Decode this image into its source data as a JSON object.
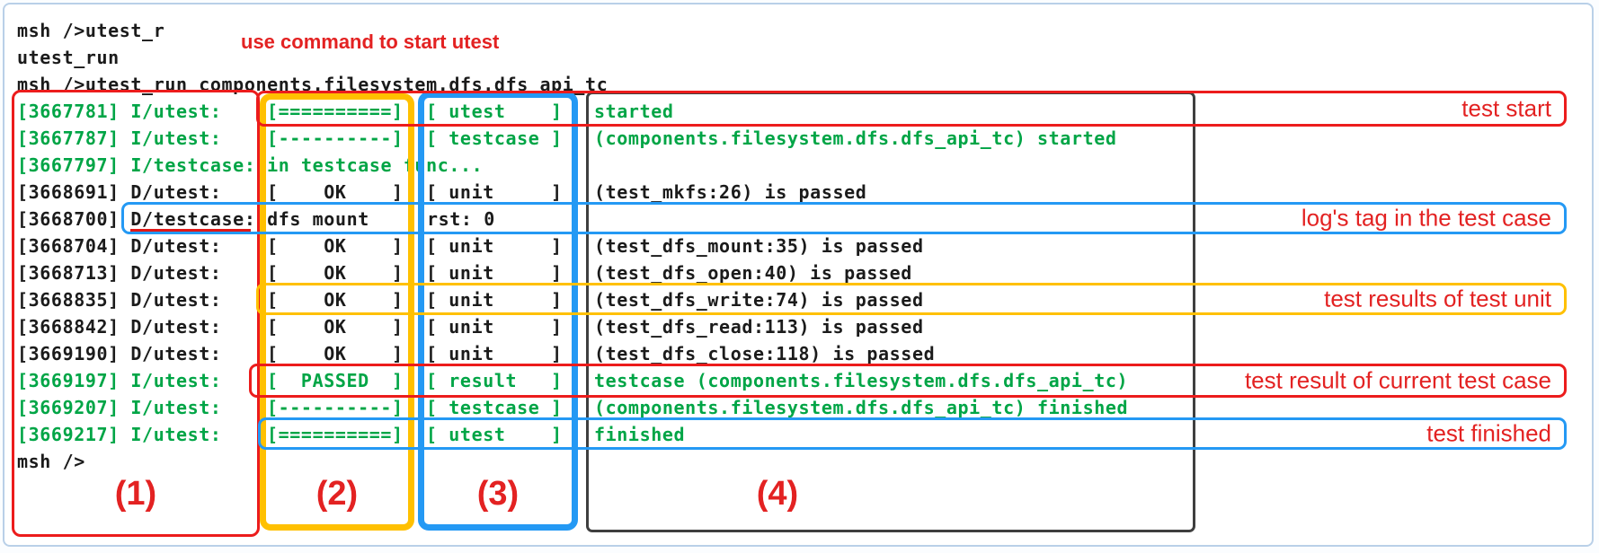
{
  "terminal": {
    "lines": [
      {
        "kind": "plain",
        "color": "dark",
        "text": "msh />utest_r"
      },
      {
        "kind": "plain",
        "color": "dark",
        "text": "utest_run"
      },
      {
        "kind": "plain",
        "color": "dark",
        "text": "msh />utest_run components.filesystem.dfs.dfs_api_tc"
      },
      {
        "kind": "log",
        "color": "green",
        "time": "[3667781]",
        "tag": "I/utest:",
        "status": "[==========]",
        "group": "[ utest    ]",
        "message": "started"
      },
      {
        "kind": "log",
        "color": "green",
        "time": "[3667787]",
        "tag": "I/utest:",
        "status": "[----------]",
        "group": "[ testcase ]",
        "message": "(components.filesystem.dfs.dfs_api_tc) started"
      },
      {
        "kind": "plain",
        "color": "green",
        "text": "[3667797] I/testcase: in testcase func..."
      },
      {
        "kind": "log",
        "color": "dark",
        "time": "[3668691]",
        "tag": "D/utest:",
        "status": "[    OK    ]",
        "group": "[ unit     ]",
        "message": "(test_mkfs:26) is passed"
      },
      {
        "kind": "split",
        "color": "dark",
        "text": "[3668700] D/testcase: dfs mount",
        "text2": "rst: 0"
      },
      {
        "kind": "log",
        "color": "dark",
        "time": "[3668704]",
        "tag": "D/utest:",
        "status": "[    OK    ]",
        "group": "[ unit     ]",
        "message": "(test_dfs_mount:35) is passed"
      },
      {
        "kind": "log",
        "color": "dark",
        "time": "[3668713]",
        "tag": "D/utest:",
        "status": "[    OK    ]",
        "group": "[ unit     ]",
        "message": "(test_dfs_open:40) is passed"
      },
      {
        "kind": "log",
        "color": "dark",
        "time": "[3668835]",
        "tag": "D/utest:",
        "status": "[    OK    ]",
        "group": "[ unit     ]",
        "message": "(test_dfs_write:74) is passed"
      },
      {
        "kind": "log",
        "color": "dark",
        "time": "[3668842]",
        "tag": "D/utest:",
        "status": "[    OK    ]",
        "group": "[ unit     ]",
        "message": "(test_dfs_read:113) is passed"
      },
      {
        "kind": "log",
        "color": "dark",
        "time": "[3669190]",
        "tag": "D/utest:",
        "status": "[    OK    ]",
        "group": "[ unit     ]",
        "message": "(test_dfs_close:118) is passed"
      },
      {
        "kind": "log",
        "color": "green",
        "time": "[3669197]",
        "tag": "I/utest:",
        "status": "[  PASSED  ]",
        "group": "[ result   ]",
        "message": "testcase (components.filesystem.dfs.dfs_api_tc)"
      },
      {
        "kind": "log",
        "color": "green",
        "time": "[3669207]",
        "tag": "I/utest:",
        "status": "[----------]",
        "group": "[ testcase ]",
        "message": "(components.filesystem.dfs.dfs_api_tc) finished"
      },
      {
        "kind": "log",
        "color": "green",
        "time": "[3669217]",
        "tag": "I/utest:",
        "status": "[==========]",
        "group": "[ utest    ]",
        "message": "finished"
      },
      {
        "kind": "plain",
        "color": "dark",
        "text": "msh />"
      }
    ],
    "text_colors": {
      "info_green": "#00a546",
      "default_dark": "#1b1b1b"
    }
  },
  "annotations": {
    "top_note": "use command to start utest",
    "labels": {
      "test_start": "test start",
      "log_tag": "log's tag in the test case",
      "unit_results": "test results of test unit",
      "case_result": "test result of current test case",
      "test_finished": "test finished"
    },
    "region_labels": [
      "(1)",
      "(2)",
      "(3)",
      "(4)"
    ],
    "colors": {
      "red": "#ec1c1c",
      "orange": "#ffc000",
      "blue": "#2499f4",
      "black_box": "#3f3f3f",
      "label_text": "#e32222"
    }
  }
}
